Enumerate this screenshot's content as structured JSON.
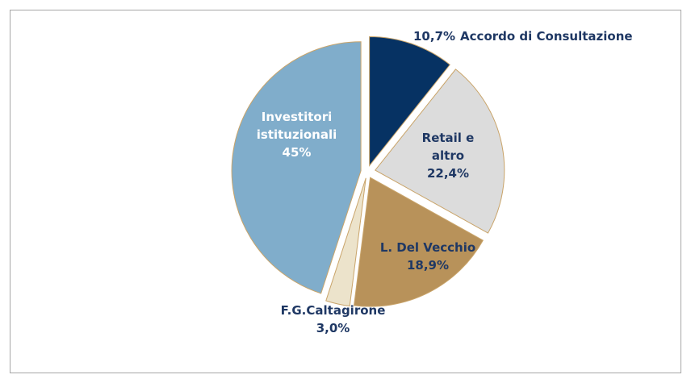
{
  "chart_data": {
    "type": "pie",
    "categories": [
      "Accordo di Consultazione",
      "Retail e altro",
      "L. Del Vecchio",
      "F.G.Caltagirone",
      "Investitori istituzionali"
    ],
    "values": [
      10.7,
      22.4,
      18.9,
      3.0,
      45
    ],
    "value_labels": [
      "10,7%",
      "22,4%",
      "18,9%",
      "3,0%",
      "45%"
    ],
    "colors": [
      "#063263",
      "#dcdcdc",
      "#b8925a",
      "#ece3cb",
      "#80adcb"
    ]
  }
}
